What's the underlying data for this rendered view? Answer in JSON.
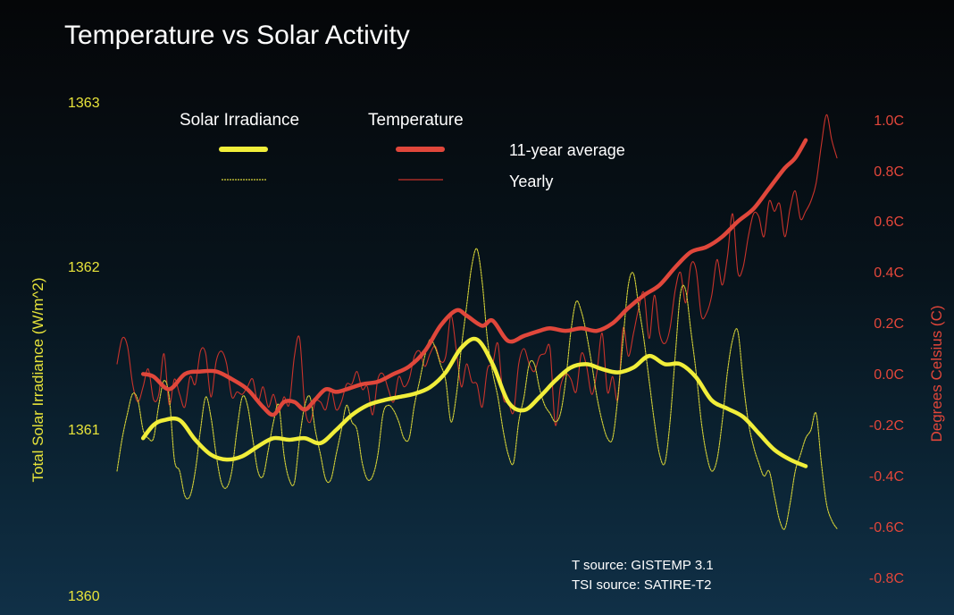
{
  "chart_data": {
    "type": "line",
    "title": "Temperature vs Solar Activity",
    "left_axis": {
      "label": "Total Solar Irradiance (W/m^2)",
      "ticks": [
        "1363",
        "1362",
        "1361",
        "1360"
      ],
      "range": [
        1360,
        1363
      ],
      "color": "#e8e43a"
    },
    "right_axis": {
      "label": "Degrees Celsius (C)",
      "ticks": [
        "1.0C",
        "0.8C",
        "0.6C",
        "0.4C",
        "0.2C",
        "0.0C",
        "-0.2C",
        "-0.4C",
        "-0.6C",
        "-0.8C"
      ],
      "range": [
        -0.8,
        1.0
      ],
      "color": "#e2463a"
    },
    "legend": {
      "solar_label": "Solar Irradiance",
      "temp_label": "Temperature",
      "avg_label": "11-year average",
      "yearly_label": "Yearly",
      "placement": "top-center"
    },
    "sources": [
      "T source: GISTEMP 3.1",
      "TSI source: SATIRE-T2"
    ],
    "x_range": [
      1880,
      2018
    ],
    "series": [
      {
        "axis": "right",
        "style": "yearly",
        "color": "#c8332b",
        "x": [
          1880,
          1881,
          1882,
          1883,
          1884,
          1885,
          1886,
          1887,
          1888,
          1889,
          1890,
          1891,
          1892,
          1893,
          1894,
          1895,
          1896,
          1897,
          1898,
          1899,
          1900,
          1901,
          1902,
          1903,
          1904,
          1905,
          1906,
          1907,
          1908,
          1909,
          1910,
          1911,
          1912,
          1913,
          1914,
          1915,
          1916,
          1917,
          1918,
          1919,
          1920,
          1921,
          1922,
          1923,
          1924,
          1925,
          1926,
          1927,
          1928,
          1929,
          1930,
          1931,
          1932,
          1933,
          1934,
          1935,
          1936,
          1937,
          1938,
          1939,
          1940,
          1941,
          1942,
          1943,
          1944,
          1945,
          1946,
          1947,
          1948,
          1949,
          1950,
          1951,
          1952,
          1953,
          1954,
          1955,
          1956,
          1957,
          1958,
          1959,
          1960,
          1961,
          1962,
          1963,
          1964,
          1965,
          1966,
          1967,
          1968,
          1969,
          1970,
          1971,
          1972,
          1973,
          1974,
          1975,
          1976,
          1977,
          1978,
          1979,
          1980,
          1981,
          1982,
          1983,
          1984,
          1985,
          1986,
          1987,
          1988,
          1989,
          1990,
          1991,
          1992,
          1993,
          1994,
          1995,
          1996,
          1997,
          1998,
          1999,
          2000,
          2001,
          2002,
          2003,
          2004,
          2005,
          2006,
          2007,
          2008,
          2009,
          2010,
          2011,
          2012,
          2013,
          2014,
          2015,
          2016,
          2017,
          2018
        ],
        "y": [
          0.04,
          0.14,
          0.11,
          -0.04,
          -0.11,
          -0.05,
          0.02,
          -0.1,
          -0.08,
          0.08,
          -0.12,
          -0.02,
          -0.08,
          -0.13,
          -0.01,
          -0.04,
          0.09,
          0.08,
          -0.09,
          0.05,
          0.09,
          0.04,
          -0.09,
          -0.07,
          -0.08,
          -0.05,
          -0.02,
          -0.11,
          -0.05,
          -0.13,
          -0.08,
          -0.15,
          -0.09,
          -0.12,
          0.07,
          0.14,
          -0.13,
          -0.19,
          -0.11,
          -0.11,
          -0.14,
          -0.06,
          -0.14,
          -0.11,
          -0.04,
          -0.04,
          0.01,
          -0.06,
          -0.05,
          -0.16,
          -0.02,
          0.0,
          -0.06,
          -0.11,
          -0.01,
          -0.05,
          -0.02,
          0.07,
          0.09,
          0.03,
          0.08,
          0.11,
          0.05,
          0.07,
          0.23,
          0.1,
          -0.05,
          0.04,
          -0.03,
          -0.04,
          -0.13,
          0.02,
          0.04,
          0.12,
          -0.09,
          -0.11,
          -0.15,
          0.04,
          0.1,
          0.04,
          0.01,
          0.07,
          0.08,
          0.1,
          -0.2,
          -0.05,
          0.0,
          -0.02,
          -0.07,
          0.08,
          0.03,
          -0.08,
          0.01,
          0.16,
          -0.07,
          -0.01,
          -0.1,
          0.18,
          0.07,
          0.16,
          0.26,
          0.32,
          0.14,
          0.31,
          0.16,
          0.12,
          0.18,
          0.33,
          0.4,
          0.28,
          0.43,
          0.41,
          0.23,
          0.24,
          0.31,
          0.45,
          0.35,
          0.46,
          0.63,
          0.4,
          0.42,
          0.54,
          0.63,
          0.62,
          0.54,
          0.68,
          0.64,
          0.67,
          0.54,
          0.65,
          0.72,
          0.61,
          0.64,
          0.68,
          0.75,
          0.9,
          1.02,
          0.92,
          0.85
        ]
      },
      {
        "axis": "right",
        "style": "average",
        "color": "#e0473b",
        "x": [
          1885,
          1887,
          1890,
          1893,
          1896,
          1899,
          1902,
          1905,
          1908,
          1910,
          1912,
          1914,
          1916,
          1918,
          1920,
          1922,
          1924,
          1927,
          1930,
          1933,
          1936,
          1939,
          1942,
          1945,
          1947,
          1950,
          1952,
          1955,
          1958,
          1961,
          1963,
          1966,
          1969,
          1972,
          1975,
          1978,
          1981,
          1984,
          1987,
          1990,
          1993,
          1996,
          1999,
          2002,
          2005,
          2008,
          2010,
          2012
        ],
        "y": [
          0.0,
          -0.01,
          -0.06,
          0.0,
          0.01,
          0.01,
          -0.02,
          -0.06,
          -0.13,
          -0.16,
          -0.11,
          -0.11,
          -0.14,
          -0.1,
          -0.06,
          -0.07,
          -0.06,
          -0.04,
          -0.03,
          0.0,
          0.03,
          0.09,
          0.19,
          0.25,
          0.23,
          0.19,
          0.21,
          0.13,
          0.15,
          0.17,
          0.18,
          0.17,
          0.18,
          0.17,
          0.2,
          0.26,
          0.31,
          0.35,
          0.42,
          0.48,
          0.5,
          0.54,
          0.6,
          0.65,
          0.73,
          0.81,
          0.85,
          0.92
        ]
      },
      {
        "axis": "left",
        "style": "yearly",
        "color": "#d6d337",
        "x": [
          1880,
          1881,
          1882,
          1883,
          1884,
          1885,
          1886,
          1887,
          1888,
          1889,
          1890,
          1891,
          1892,
          1893,
          1894,
          1895,
          1896,
          1897,
          1898,
          1899,
          1900,
          1901,
          1902,
          1903,
          1904,
          1905,
          1906,
          1907,
          1908,
          1909,
          1910,
          1911,
          1912,
          1913,
          1914,
          1915,
          1916,
          1917,
          1918,
          1919,
          1920,
          1921,
          1922,
          1923,
          1924,
          1925,
          1926,
          1927,
          1928,
          1929,
          1930,
          1931,
          1932,
          1933,
          1934,
          1935,
          1936,
          1937,
          1938,
          1939,
          1940,
          1941,
          1942,
          1943,
          1944,
          1945,
          1946,
          1947,
          1948,
          1949,
          1950,
          1951,
          1952,
          1953,
          1954,
          1955,
          1956,
          1957,
          1958,
          1959,
          1960,
          1961,
          1962,
          1963,
          1964,
          1965,
          1966,
          1967,
          1968,
          1969,
          1970,
          1971,
          1972,
          1973,
          1974,
          1975,
          1976,
          1977,
          1978,
          1979,
          1980,
          1981,
          1982,
          1983,
          1984,
          1985,
          1986,
          1987,
          1988,
          1989,
          1990,
          1991,
          1992,
          1993,
          1994,
          1995,
          1996,
          1997,
          1998,
          1999,
          2000,
          2001,
          2002,
          2003,
          2004,
          2005,
          2006,
          2007,
          2008,
          2009,
          2010,
          2011,
          2012,
          2013,
          2014,
          2015,
          2016,
          2017,
          2018
        ],
        "y": [
          1360.75,
          1360.95,
          1361.1,
          1361.22,
          1361.18,
          1361.0,
          1360.95,
          1360.95,
          1361.15,
          1361.3,
          1361.2,
          1360.82,
          1360.75,
          1360.6,
          1360.6,
          1360.75,
          1361.0,
          1361.2,
          1361.08,
          1360.85,
          1360.68,
          1360.65,
          1360.75,
          1361.0,
          1361.2,
          1361.15,
          1360.95,
          1360.75,
          1360.72,
          1360.88,
          1361.05,
          1361.15,
          1360.85,
          1360.7,
          1360.68,
          1360.95,
          1361.15,
          1361.2,
          1361.0,
          1360.85,
          1360.7,
          1360.7,
          1360.85,
          1361.0,
          1361.15,
          1361.05,
          1361.0,
          1360.8,
          1360.7,
          1360.72,
          1360.85,
          1361.1,
          1361.15,
          1361.12,
          1361.05,
          1360.95,
          1360.95,
          1361.15,
          1361.3,
          1361.45,
          1361.55,
          1361.5,
          1361.4,
          1361.3,
          1361.05,
          1361.2,
          1361.5,
          1361.75,
          1362.0,
          1362.1,
          1361.9,
          1361.55,
          1361.35,
          1361.2,
          1361.0,
          1360.85,
          1360.8,
          1361.05,
          1361.2,
          1361.4,
          1361.4,
          1361.25,
          1361.15,
          1361.1,
          1361.05,
          1361.1,
          1361.3,
          1361.6,
          1361.78,
          1361.72,
          1361.58,
          1361.4,
          1361.2,
          1361.05,
          1360.95,
          1360.95,
          1361.2,
          1361.55,
          1361.88,
          1361.95,
          1361.75,
          1361.55,
          1361.3,
          1361.05,
          1360.85,
          1360.8,
          1361.05,
          1361.45,
          1361.83,
          1361.85,
          1361.6,
          1361.35,
          1361.05,
          1360.85,
          1360.75,
          1360.82,
          1361.05,
          1361.35,
          1361.55,
          1361.6,
          1361.3,
          1361.05,
          1360.9,
          1360.8,
          1360.72,
          1360.75,
          1360.6,
          1360.45,
          1360.4,
          1360.55,
          1360.75,
          1360.85,
          1360.95,
          1361.0,
          1361.1,
          1360.8,
          1360.55,
          1360.45,
          1360.4
        ]
      },
      {
        "axis": "left",
        "style": "average",
        "color": "#f1ee3a",
        "x": [
          1885,
          1887,
          1889,
          1892,
          1895,
          1898,
          1901,
          1904,
          1907,
          1910,
          1913,
          1916,
          1919,
          1922,
          1925,
          1928,
          1931,
          1934,
          1937,
          1940,
          1943,
          1946,
          1949,
          1952,
          1955,
          1958,
          1961,
          1964,
          1967,
          1970,
          1973,
          1976,
          1979,
          1982,
          1985,
          1988,
          1991,
          1994,
          1997,
          2000,
          2003,
          2006,
          2009,
          2012
        ],
        "y": [
          1360.95,
          1361.03,
          1361.06,
          1361.06,
          1360.94,
          1360.85,
          1360.82,
          1360.84,
          1360.9,
          1360.95,
          1360.94,
          1360.95,
          1360.92,
          1361.0,
          1361.09,
          1361.15,
          1361.18,
          1361.2,
          1361.22,
          1361.26,
          1361.35,
          1361.5,
          1361.55,
          1361.4,
          1361.17,
          1361.12,
          1361.2,
          1361.3,
          1361.38,
          1361.4,
          1361.37,
          1361.35,
          1361.38,
          1361.45,
          1361.4,
          1361.4,
          1361.32,
          1361.18,
          1361.13,
          1361.08,
          1360.98,
          1360.88,
          1360.82,
          1360.78
        ]
      }
    ]
  }
}
